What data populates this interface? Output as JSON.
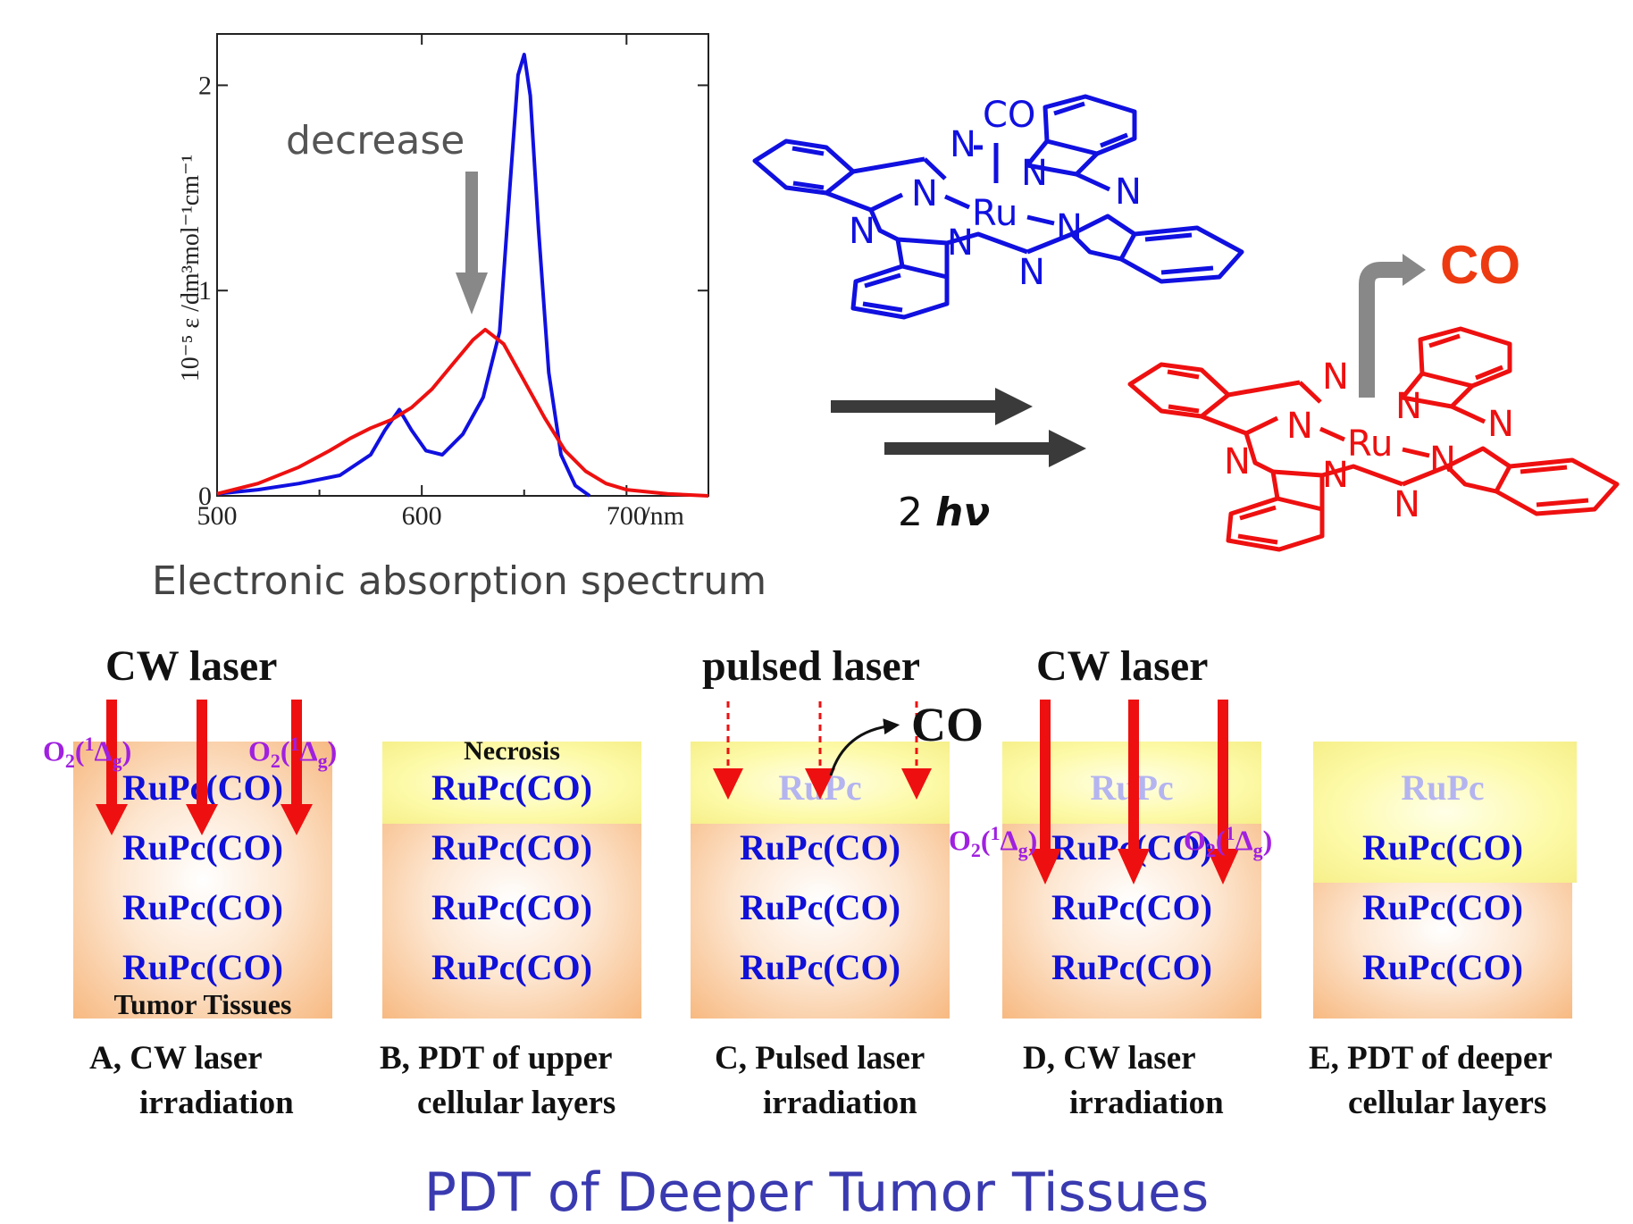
{
  "chart_data": {
    "type": "line",
    "title": "",
    "xlabel": "/nm",
    "ylabel": "10⁻⁵ ε /dm³mol⁻¹cm⁻¹",
    "xlim": [
      500,
      740
    ],
    "ylim": [
      0,
      2.25
    ],
    "xticks": [
      "500",
      "600",
      "700"
    ],
    "yticks": [
      "0",
      "1",
      "2"
    ],
    "annotation": "decrease",
    "series": [
      {
        "color": "#1010e0",
        "x": [
          500,
          520,
          540,
          560,
          575,
          582,
          589,
          595,
          602,
          610,
          620,
          630,
          638,
          643,
          647,
          650,
          653,
          657,
          662,
          668,
          675,
          682
        ],
        "y": [
          0.01,
          0.03,
          0.06,
          0.1,
          0.2,
          0.32,
          0.42,
          0.32,
          0.22,
          0.2,
          0.3,
          0.48,
          0.8,
          1.5,
          2.05,
          2.15,
          1.95,
          1.3,
          0.6,
          0.2,
          0.05,
          0.0
        ]
      },
      {
        "color": "#ee1010",
        "x": [
          500,
          520,
          540,
          555,
          565,
          575,
          585,
          595,
          605,
          615,
          625,
          631,
          640,
          650,
          660,
          670,
          680,
          690,
          700,
          720,
          740
        ],
        "y": [
          0.01,
          0.06,
          0.14,
          0.22,
          0.28,
          0.33,
          0.37,
          0.43,
          0.52,
          0.64,
          0.76,
          0.81,
          0.74,
          0.56,
          0.38,
          0.22,
          0.12,
          0.06,
          0.03,
          0.01,
          0.0
        ]
      }
    ]
  },
  "spectrum_caption": "Electronic absorption spectrum",
  "reaction": {
    "light_label_num": "2",
    "light_label_sym": "hν",
    "released": "CO",
    "top_molecule_color": "#1010e0",
    "bottom_molecule_color": "#ee1010"
  },
  "molecule_atoms": {
    "N": "N",
    "Ru": "Ru",
    "CO": "CO"
  },
  "panels": {
    "cw_laser": "CW laser",
    "pulsed_laser": "pulsed laser",
    "co_release": "CO",
    "o2_base": "O",
    "o2_sub": "2",
    "o2_paren_open": "(",
    "o2_sup": "1",
    "o2_delta": "Δ",
    "o2_sub_g": "g",
    "o2_paren_close": ")",
    "tumor": "Tumor Tissues",
    "necrosis": "Necrosis",
    "rupc_co": "RuPc(CO)",
    "rupc": "RuPc",
    "caption_a_1": "A, CW laser",
    "caption_a_2": "irradiation",
    "caption_b_1": "B, PDT of upper",
    "caption_b_2": "cellular layers",
    "caption_c_1": "C, Pulsed laser",
    "caption_c_2": "irradiation",
    "caption_d_1": "D, CW laser",
    "caption_d_2": "irradiation",
    "caption_e_1": "E, PDT of deeper",
    "caption_e_2": "cellular layers"
  },
  "footer_title": "PDT of Deeper Tumor Tissues"
}
